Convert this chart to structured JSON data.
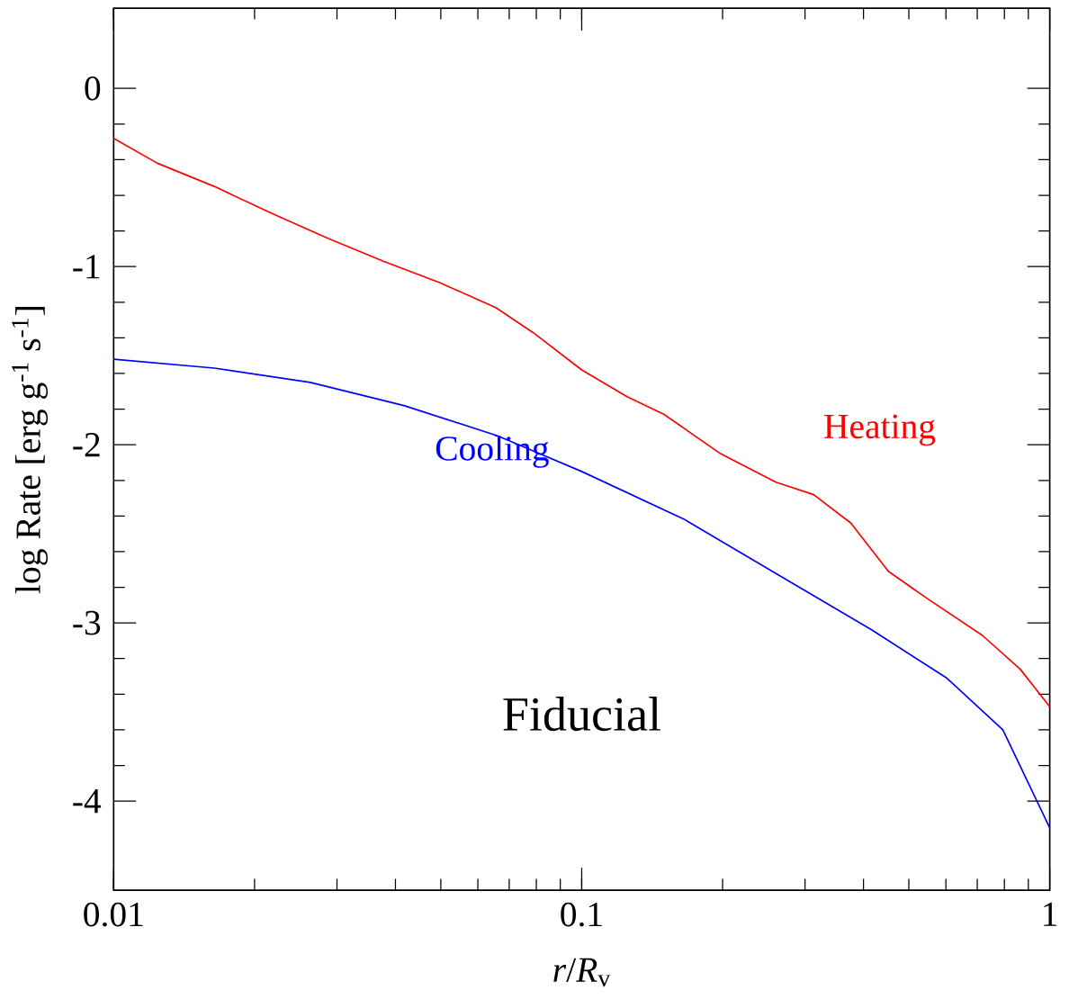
{
  "chart_data": {
    "type": "line",
    "xlabel": "*r*/*R*$_{v}$",
    "ylabel": "log Rate [erg g$^{-1}$ s$^{-1}$]",
    "log": "x",
    "xlim": [
      0.01,
      1
    ],
    "xticks": [
      0.01,
      0.1,
      1
    ],
    "ylim": [
      -4.5,
      0.45
    ],
    "yticks": [
      0,
      -1,
      -2,
      -3,
      -4
    ],
    "grid": false,
    "legend": false,
    "marker": "none",
    "line_style": "solid",
    "annotations": [
      "Fiducial"
    ],
    "series": [
      {
        "name": "Heating",
        "color": "#ff0000",
        "x": [
          0.01,
          0.0124,
          0.0164,
          0.0217,
          0.0286,
          0.0377,
          0.0497,
          0.0655,
          0.0787,
          0.1,
          0.125,
          0.15,
          0.198,
          0.26,
          0.313,
          0.376,
          0.452,
          0.545,
          0.718,
          0.865,
          1
        ],
        "values": [
          -0.28,
          -0.42,
          -0.55,
          -0.7,
          -0.84,
          -0.97,
          -1.09,
          -1.23,
          -1.37,
          -1.58,
          -1.73,
          -1.83,
          -2.05,
          -2.21,
          -2.28,
          -2.44,
          -2.71,
          -2.86,
          -3.07,
          -3.26,
          -3.47
        ]
      },
      {
        "name": "Cooling",
        "color": "#0000ff",
        "x": [
          0.01,
          0.0164,
          0.0263,
          0.0417,
          0.0661,
          0.1,
          0.166,
          0.263,
          0.417,
          0.603,
          0.794,
          1
        ],
        "values": [
          -1.52,
          -1.57,
          -1.65,
          -1.78,
          -1.95,
          -2.15,
          -2.42,
          -2.73,
          -3.04,
          -3.31,
          -3.6,
          -4.15
        ]
      }
    ]
  }
}
